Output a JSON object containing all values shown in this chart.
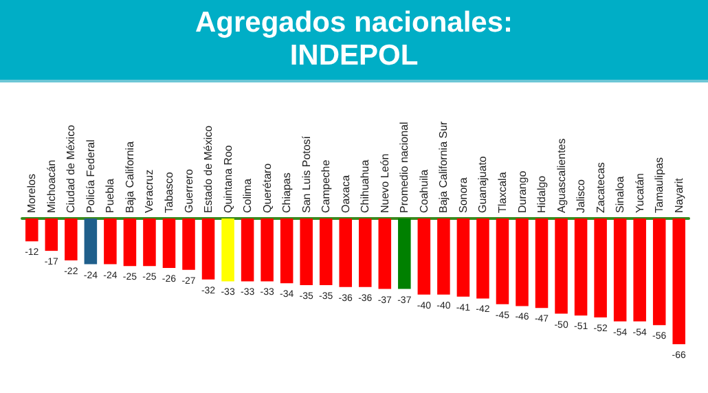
{
  "chart_data": {
    "type": "bar",
    "title": "Agregados nacionales: INDEPOL",
    "categories": [
      "Morelos",
      "Michoacán",
      "Ciudad de México",
      "Policía Federal",
      "Puebla",
      "Baja California",
      "Veracruz",
      "Tabasco",
      "Guerrero",
      "Estado de México",
      "Quintana Roo",
      "Colima",
      "Querétaro",
      "Chiapas",
      "San Luis Potosí",
      "Campeche",
      "Oaxaca",
      "Chihuahua",
      "Nuevo León",
      "Promedio nacional",
      "Coahuila",
      "Baja California Sur",
      "Sonora",
      "Guanajuato",
      "Tlaxcala",
      "Durango",
      "Hidalgo",
      "Aguascalientes",
      "Jalisco",
      "Zacatecas",
      "Sinaloa",
      "Yucatán",
      "Tamaulipas",
      "Nayarit"
    ],
    "values": [
      -12,
      -17,
      -22,
      -24,
      -24,
      -25,
      -25,
      -26,
      -27,
      -32,
      -33,
      -33,
      -33,
      -34,
      -35,
      -35,
      -36,
      -36,
      -37,
      -37,
      -40,
      -40,
      -41,
      -42,
      -45,
      -46,
      -47,
      -50,
      -51,
      -52,
      -54,
      -54,
      -56,
      -66
    ],
    "colors": [
      "#ff0000",
      "#ff0000",
      "#ff0000",
      "#1f5f8b",
      "#ff0000",
      "#ff0000",
      "#ff0000",
      "#ff0000",
      "#ff0000",
      "#ff0000",
      "#ffff00",
      "#ff0000",
      "#ff0000",
      "#ff0000",
      "#ff0000",
      "#ff0000",
      "#ff0000",
      "#ff0000",
      "#ff0000",
      "#008000",
      "#ff0000",
      "#ff0000",
      "#ff0000",
      "#ff0000",
      "#ff0000",
      "#ff0000",
      "#ff0000",
      "#ff0000",
      "#ff0000",
      "#ff0000",
      "#ff0000",
      "#ff0000",
      "#ff0000",
      "#ff0000"
    ],
    "data_labels": true
  }
}
